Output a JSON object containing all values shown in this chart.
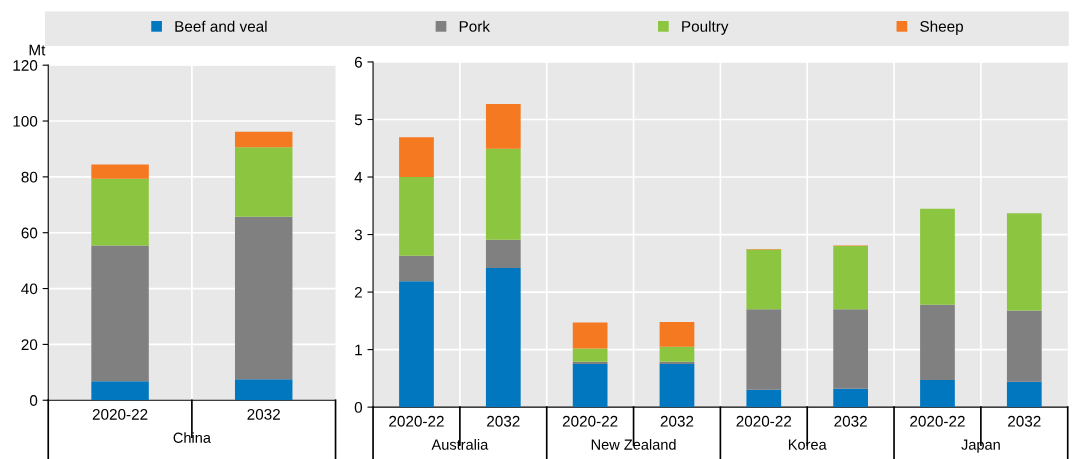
{
  "chart_data": [
    {
      "type": "bar",
      "stacked": true,
      "ylabel": "Mt",
      "categories": [
        "2020-22",
        "2032"
      ],
      "annotations": [
        "China"
      ],
      "ylim": [
        0,
        120
      ],
      "yticks": [
        0,
        20,
        40,
        60,
        80,
        100,
        120
      ],
      "grid": true,
      "legend": "top",
      "series": [
        {
          "name": "Beef and veal",
          "color": "#0077bf",
          "values": [
            6.8,
            7.5
          ]
        },
        {
          "name": "Pork",
          "color": "#808080",
          "values": [
            48.6,
            58.2
          ]
        },
        {
          "name": "Poultry",
          "color": "#8cc641",
          "values": [
            23.9,
            24.9
          ]
        },
        {
          "name": "Sheep",
          "color": "#f47920",
          "values": [
            5.1,
            5.6
          ]
        }
      ]
    },
    {
      "type": "bar",
      "stacked": true,
      "categories": [
        "2020-22",
        "2032",
        "2020-22",
        "2032",
        "2020-22",
        "2032",
        "2020-22",
        "2032"
      ],
      "annotations": [
        "Australia",
        "New Zealand",
        "Korea",
        "Japan"
      ],
      "ylim": [
        0,
        6
      ],
      "yticks": [
        0,
        1,
        2,
        3,
        4,
        5,
        6
      ],
      "grid": true,
      "series": [
        {
          "color": "#0077bf",
          "values": [
            2.19,
            2.42,
            0.75,
            0.75,
            0.3,
            0.32,
            0.47,
            0.44
          ]
        },
        {
          "color": "#808080",
          "values": [
            0.44,
            0.49,
            0.04,
            0.04,
            1.4,
            1.38,
            1.31,
            1.24
          ]
        },
        {
          "color": "#8cc641",
          "values": [
            1.37,
            1.58,
            0.23,
            0.26,
            1.04,
            1.1,
            1.67,
            1.69
          ]
        },
        {
          "color": "#f47920",
          "values": [
            0.69,
            0.78,
            0.45,
            0.43,
            0.01,
            0.01,
            0,
            0
          ]
        }
      ]
    }
  ]
}
